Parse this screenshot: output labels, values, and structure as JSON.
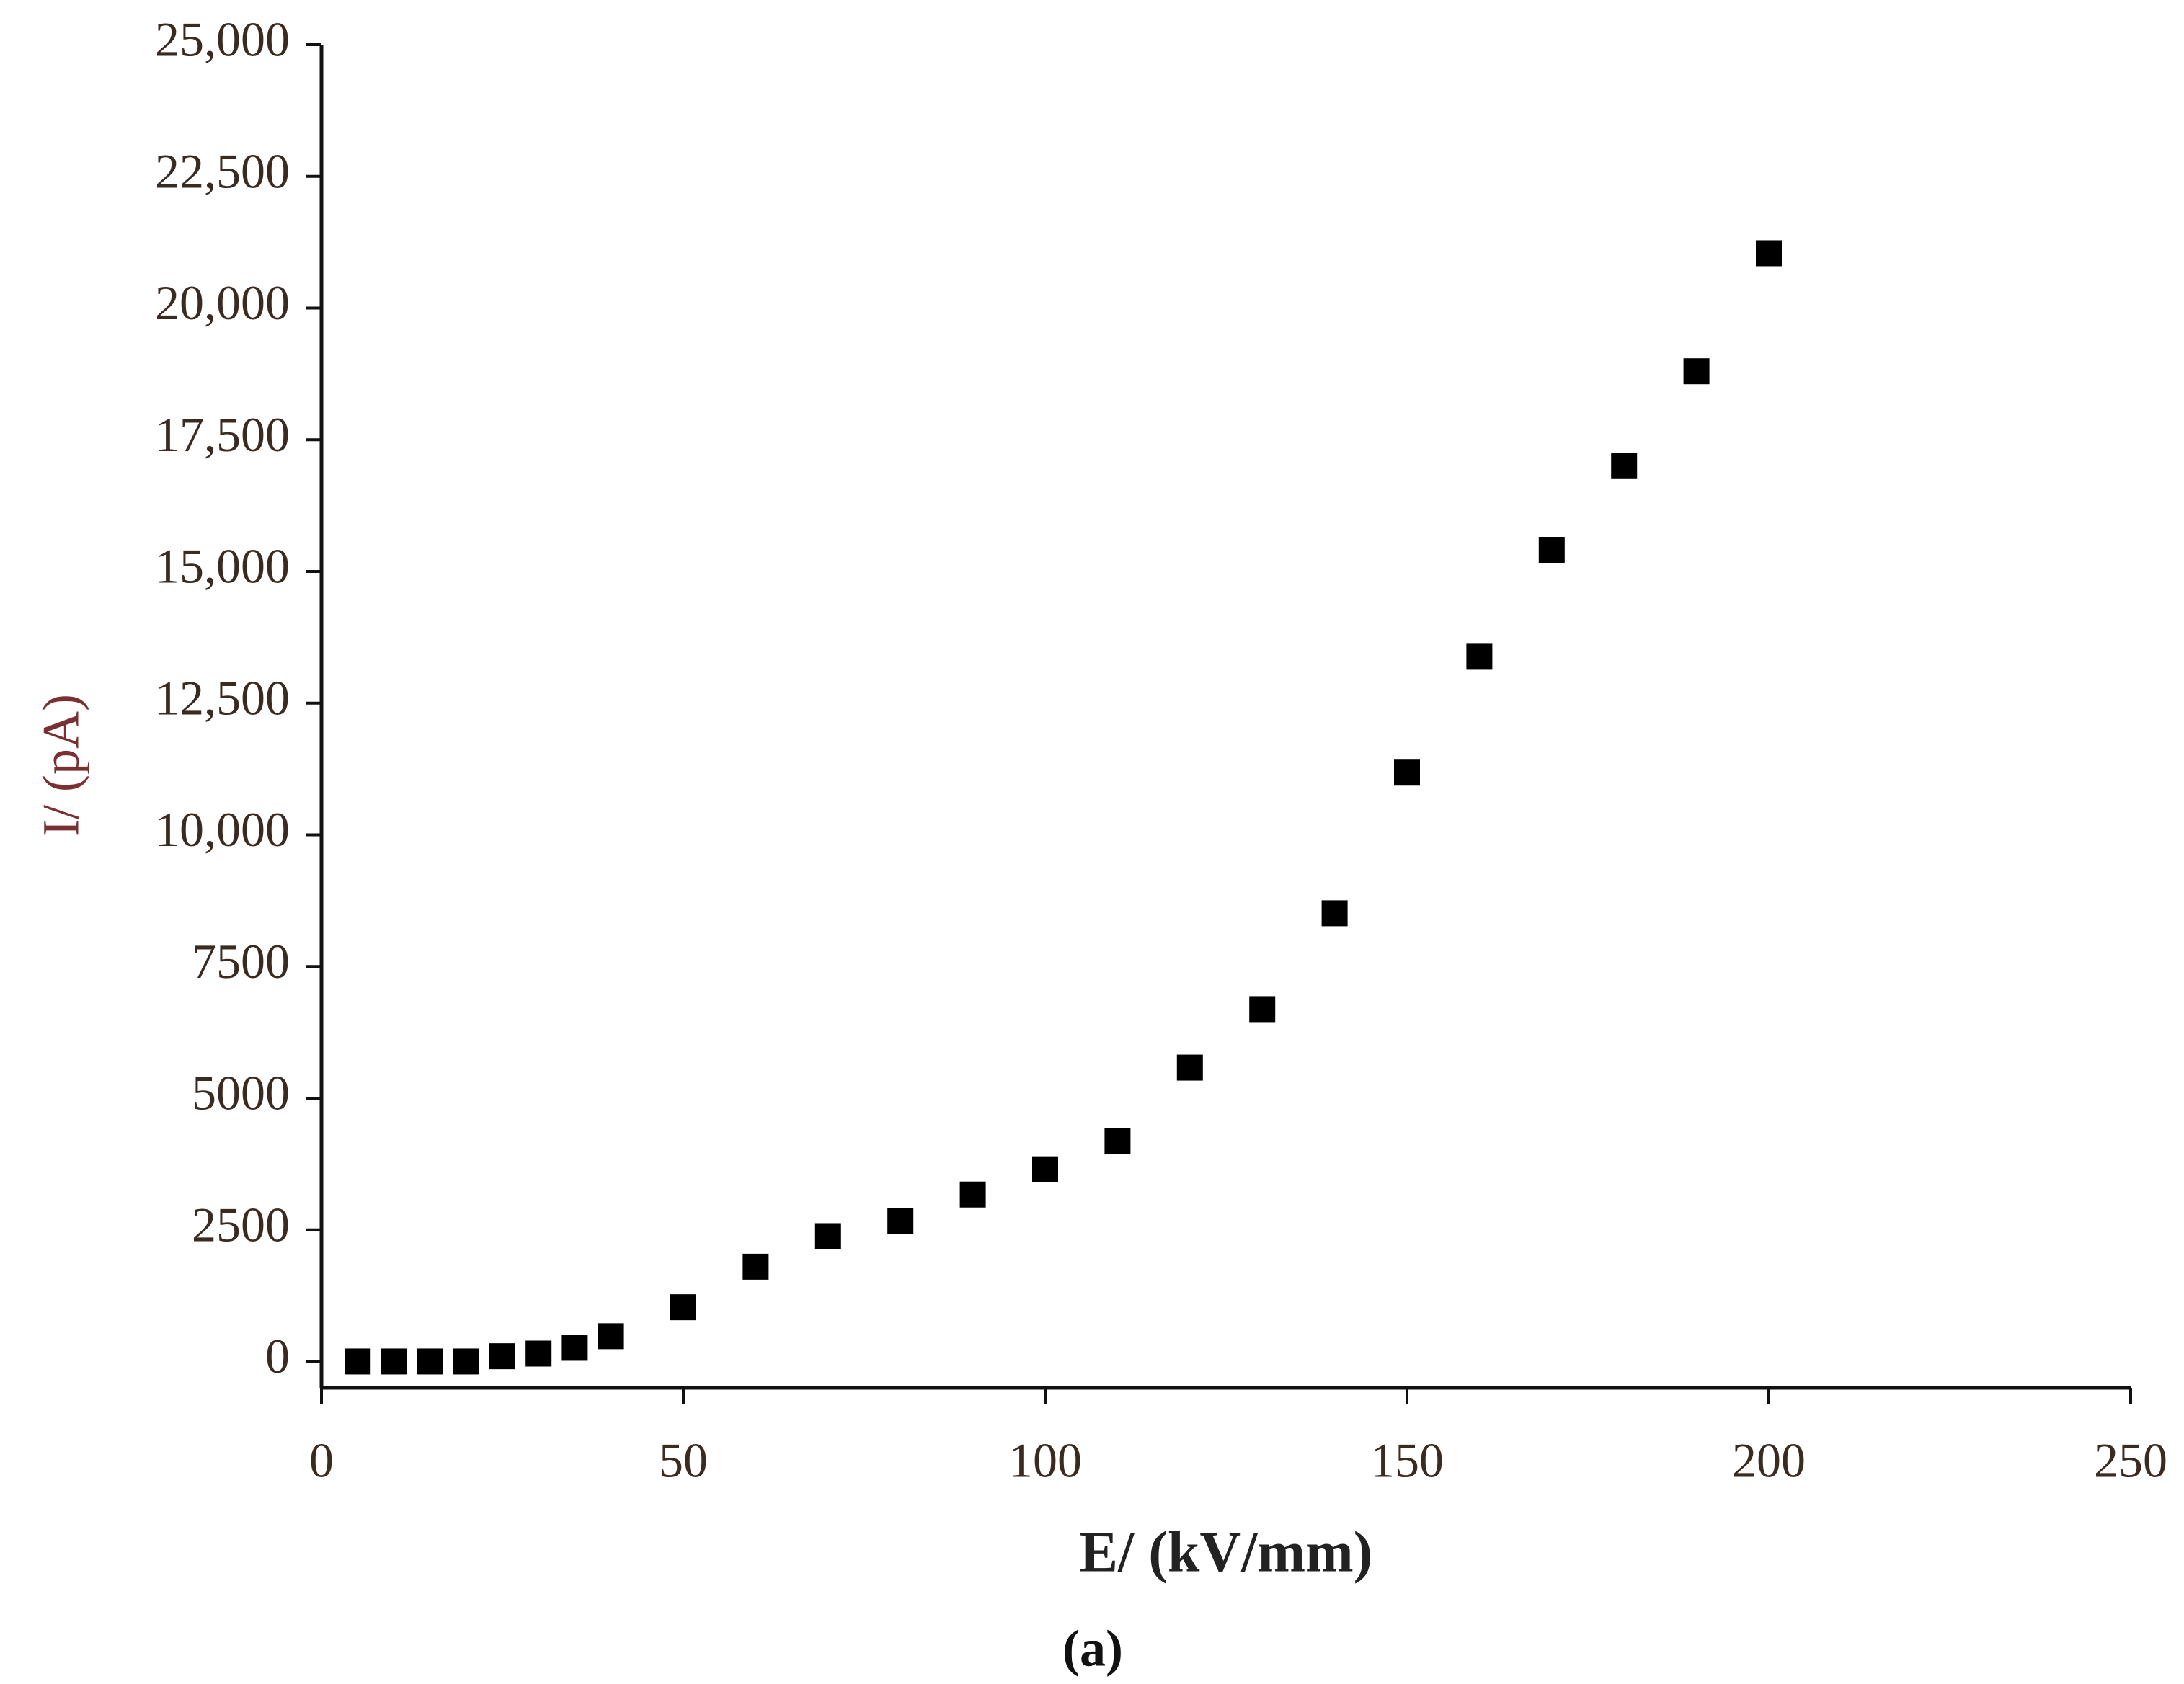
{
  "chart_data": {
    "type": "scatter",
    "x_label": "E/ (kV/mm)",
    "y_label": "I/ (pA)",
    "caption": "(a)",
    "x": [
      5,
      10,
      15,
      20,
      25,
      30,
      35,
      40,
      50,
      60,
      70,
      80,
      90,
      100,
      110,
      120,
      130,
      140,
      150,
      160,
      170,
      180,
      190,
      200
    ],
    "values": [
      0,
      0,
      0,
      0,
      100,
      150,
      260,
      480,
      1030,
      1800,
      2380,
      2670,
      3170,
      3650,
      4180,
      5580,
      6690,
      8510,
      11180,
      13380,
      15410,
      17000,
      18800,
      21040
    ],
    "color": "#000000",
    "xlim": [
      0,
      250
    ],
    "xticks": [
      0,
      50,
      100,
      150,
      200,
      250
    ],
    "ylim": [
      -500,
      25000
    ],
    "yticks": [
      0,
      2500,
      5000,
      7500,
      {
        "value": 10000,
        "label": "10,000"
      },
      {
        "value": 12500,
        "label": "12,500"
      },
      {
        "value": 15000,
        "label": "15,000"
      },
      {
        "value": 17500,
        "label": "17,500"
      },
      {
        "value": 20000,
        "label": "20,000"
      },
      {
        "value": 22500,
        "label": "22,500"
      },
      {
        "value": 25000,
        "label": "25,000"
      }
    ],
    "grid": false
  }
}
